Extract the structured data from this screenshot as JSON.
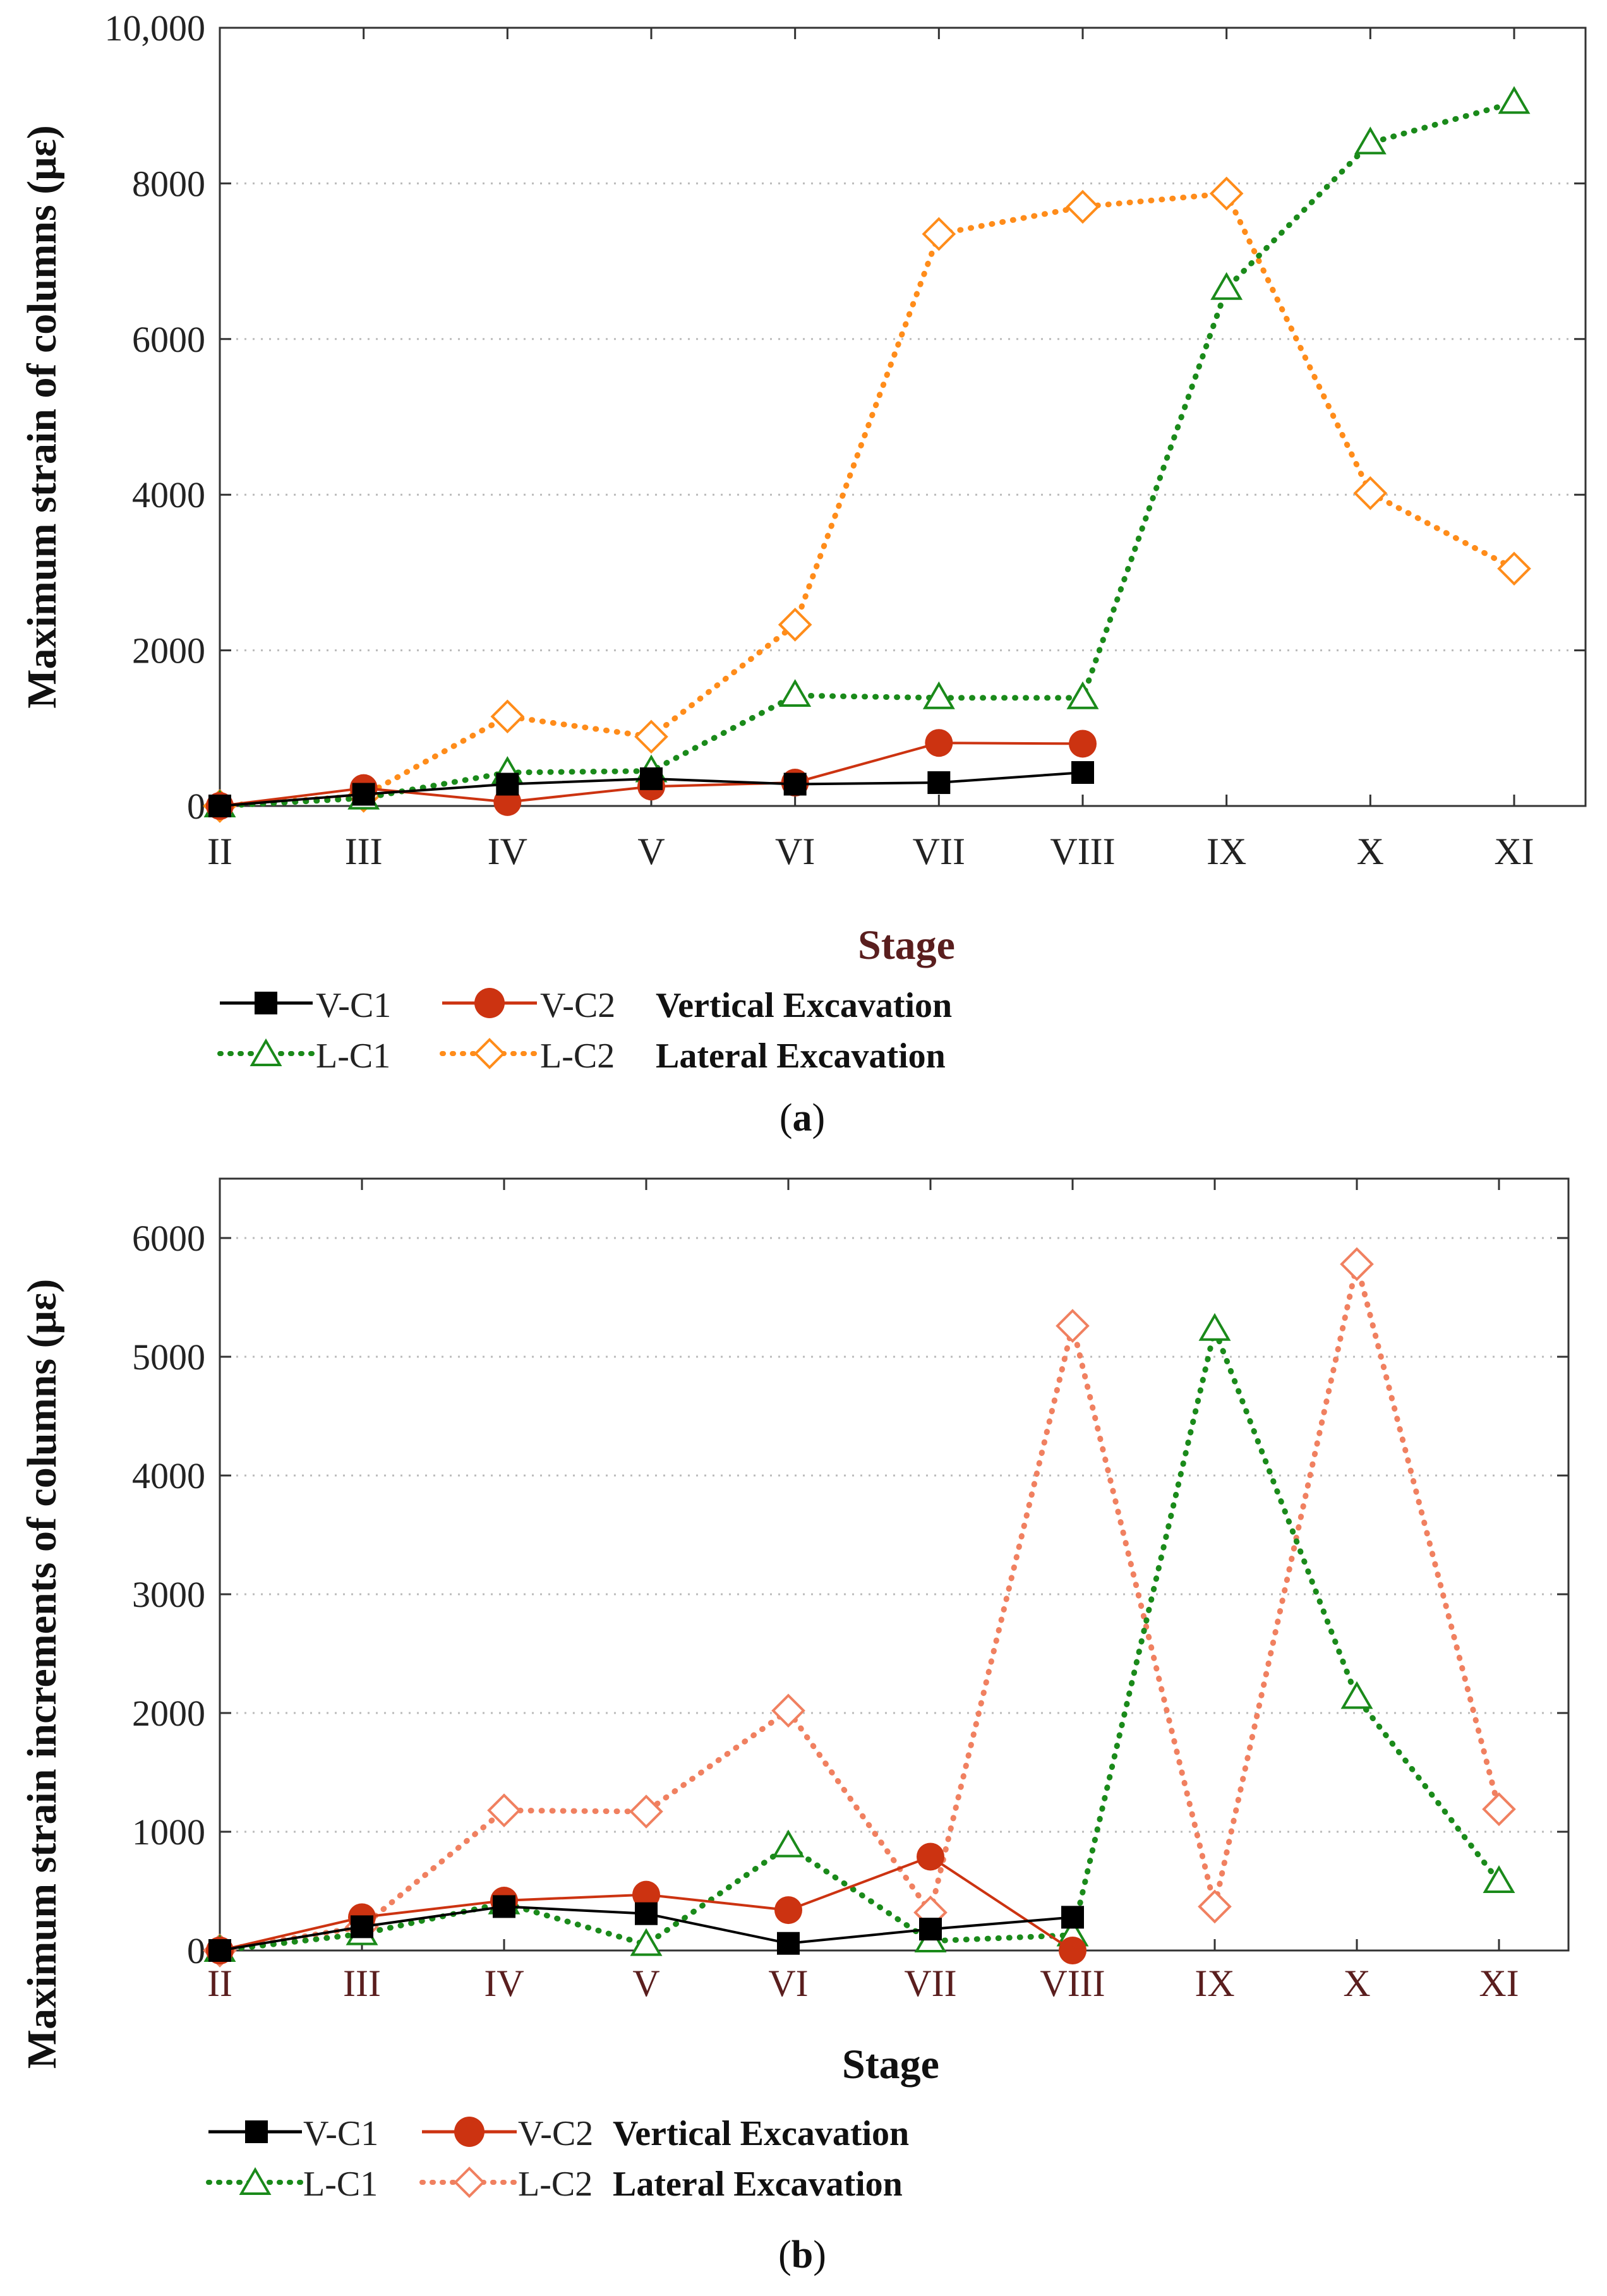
{
  "chart_data": [
    {
      "type": "line",
      "panel_label": "a",
      "title": "",
      "xlabel": "Stage",
      "ylabel": "Maximum strain of columns (με)",
      "categories": [
        "II",
        "III",
        "IV",
        "V",
        "VI",
        "VII",
        "VIII",
        "IX",
        "X",
        "XI"
      ],
      "ylim": [
        0,
        10000
      ],
      "yticks": [
        "0",
        "2000",
        "4000",
        "6000",
        "8000",
        "10,000"
      ],
      "ytick_values": [
        0,
        2000,
        4000,
        6000,
        8000,
        10000
      ],
      "grid": "horizontal dotted",
      "series": [
        {
          "name": "V-C1",
          "values": [
            0,
            150,
            280,
            350,
            280,
            300,
            430,
            null,
            null,
            null
          ],
          "color": "#000000",
          "marker": "square",
          "line": "solid"
        },
        {
          "name": "V-C2",
          "values": [
            0,
            230,
            50,
            250,
            300,
            810,
            800,
            null,
            null,
            null
          ],
          "color": "#cc3311",
          "marker": "circle",
          "line": "solid"
        },
        {
          "name": "L-C1",
          "values": [
            0,
            100,
            430,
            450,
            1420,
            1390,
            1390,
            6650,
            8520,
            9040
          ],
          "color": "#1a8a1a",
          "marker": "triangle-open",
          "line": "dotted"
        },
        {
          "name": "L-C2",
          "values": [
            0,
            130,
            1150,
            890,
            2330,
            7350,
            7700,
            7870,
            4020,
            3050
          ],
          "color": "#ff8c1a",
          "marker": "diamond-open",
          "line": "dotted"
        }
      ],
      "legend": {
        "placement": "bottom",
        "rows": [
          {
            "items": [
              "V-C1",
              "V-C2"
            ],
            "label": "Vertical Excavation"
          },
          {
            "items": [
              "L-C1",
              "L-C2"
            ],
            "label": "Lateral Excavation"
          }
        ]
      }
    },
    {
      "type": "line",
      "panel_label": "b",
      "title": "",
      "xlabel": "Stage",
      "ylabel": "Maximum strain increments of columns (με)",
      "categories": [
        "II",
        "III",
        "IV",
        "V",
        "VI",
        "VII",
        "VIII",
        "IX",
        "X",
        "XI"
      ],
      "ylim": [
        0,
        6500
      ],
      "yticks": [
        "0",
        "1000",
        "2000",
        "3000",
        "4000",
        "5000",
        "6000"
      ],
      "ytick_values": [
        0,
        1000,
        2000,
        3000,
        4000,
        5000,
        6000
      ],
      "grid": "horizontal dotted",
      "series": [
        {
          "name": "V-C1",
          "values": [
            0,
            200,
            370,
            310,
            60,
            180,
            280,
            null,
            null,
            null
          ],
          "color": "#000000",
          "marker": "square",
          "line": "solid"
        },
        {
          "name": "V-C2",
          "values": [
            0,
            280,
            420,
            470,
            340,
            790,
            0,
            null,
            null,
            null
          ],
          "color": "#cc3311",
          "marker": "circle",
          "line": "solid"
        },
        {
          "name": "L-C1",
          "values": [
            0,
            140,
            400,
            50,
            880,
            80,
            130,
            5230,
            2130,
            580
          ],
          "color": "#1a8a1a",
          "marker": "triangle-open",
          "line": "dotted"
        },
        {
          "name": "L-C2",
          "values": [
            0,
            200,
            1180,
            1170,
            2020,
            320,
            5260,
            370,
            5780,
            1190
          ],
          "color": "#f08060",
          "marker": "diamond-open",
          "line": "dotted"
        }
      ],
      "legend": {
        "placement": "bottom",
        "rows": [
          {
            "items": [
              "V-C1",
              "V-C2"
            ],
            "label": "Vertical Excavation"
          },
          {
            "items": [
              "L-C1",
              "L-C2"
            ],
            "label": "Lateral Excavation"
          }
        ]
      }
    }
  ]
}
